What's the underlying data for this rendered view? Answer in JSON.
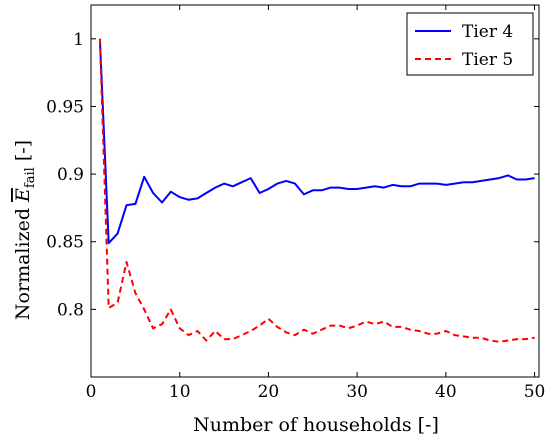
{
  "chart_data": {
    "type": "line",
    "xlabel": "Number of households [-]",
    "ylabel": {
      "prefix": "Normalized ",
      "symbol": "E",
      "subscript": "fail",
      "suffix": " [-]"
    },
    "xlim": [
      0,
      50.5
    ],
    "ylim": [
      0.75,
      1.025
    ],
    "xticks": [
      0,
      10,
      20,
      30,
      40,
      50
    ],
    "yticks": [
      0.8,
      0.85,
      0.9,
      0.95,
      1
    ],
    "ytick_labels": [
      "0.8",
      "0.85",
      "0.9",
      "0.95",
      "1"
    ],
    "grid": false,
    "legend_position": "top-right",
    "x": [
      1,
      2,
      3,
      4,
      5,
      6,
      7,
      8,
      9,
      10,
      11,
      12,
      13,
      14,
      15,
      16,
      17,
      18,
      19,
      20,
      21,
      22,
      23,
      24,
      25,
      26,
      27,
      28,
      29,
      30,
      31,
      32,
      33,
      34,
      35,
      36,
      37,
      38,
      39,
      40,
      41,
      42,
      43,
      44,
      45,
      46,
      47,
      48,
      49,
      50
    ],
    "series": [
      {
        "name": "Tier 4",
        "color": "#0000ff",
        "style": "solid",
        "values": [
          1.0,
          0.849,
          0.856,
          0.877,
          0.878,
          0.898,
          0.886,
          0.879,
          0.887,
          0.883,
          0.881,
          0.882,
          0.886,
          0.89,
          0.893,
          0.891,
          0.894,
          0.897,
          0.886,
          0.889,
          0.893,
          0.895,
          0.893,
          0.885,
          0.888,
          0.888,
          0.89,
          0.89,
          0.889,
          0.889,
          0.89,
          0.891,
          0.89,
          0.892,
          0.891,
          0.891,
          0.893,
          0.893,
          0.893,
          0.892,
          0.893,
          0.894,
          0.894,
          0.895,
          0.896,
          0.897,
          0.899,
          0.896,
          0.896,
          0.897
        ]
      },
      {
        "name": "Tier 5",
        "color": "#ff0000",
        "style": "dashed",
        "values": [
          1.0,
          0.801,
          0.805,
          0.835,
          0.812,
          0.8,
          0.786,
          0.789,
          0.8,
          0.786,
          0.781,
          0.784,
          0.777,
          0.784,
          0.778,
          0.778,
          0.781,
          0.784,
          0.788,
          0.793,
          0.787,
          0.783,
          0.781,
          0.785,
          0.782,
          0.785,
          0.788,
          0.788,
          0.786,
          0.788,
          0.791,
          0.789,
          0.791,
          0.787,
          0.787,
          0.785,
          0.784,
          0.782,
          0.782,
          0.784,
          0.781,
          0.78,
          0.779,
          0.779,
          0.777,
          0.776,
          0.777,
          0.778,
          0.778,
          0.779
        ]
      }
    ]
  }
}
